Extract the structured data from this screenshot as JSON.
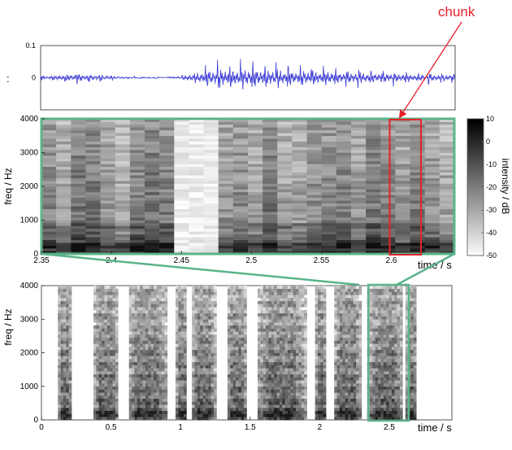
{
  "annotation": {
    "chunk_label": "chunk",
    "colon_label": ":",
    "accent_color": "#e8202a",
    "zoom_box_color": "#5bb38a"
  },
  "chart_data": [
    {
      "type": "line",
      "subject": "waveform",
      "x_range": [
        2.35,
        2.65
      ],
      "ylim": [
        -0.1,
        0.1
      ],
      "y_ticks": [
        "0.1",
        "0"
      ],
      "line_color": "#3b3bd6",
      "envelope": {
        "x": [
          2.35,
          2.36,
          2.37,
          2.38,
          2.39,
          2.4,
          2.41,
          2.42,
          2.43,
          2.44,
          2.45,
          2.46,
          2.47,
          2.48,
          2.49,
          2.5,
          2.51,
          2.52,
          2.53,
          2.54,
          2.55,
          2.56,
          2.57,
          2.58,
          2.59,
          2.6,
          2.61,
          2.62,
          2.63,
          2.64,
          2.65
        ],
        "amplitude": [
          0.01,
          0.015,
          0.025,
          0.03,
          0.02,
          0.015,
          0.005,
          0.002,
          0.002,
          0.002,
          0.01,
          0.025,
          0.06,
          0.075,
          0.07,
          0.07,
          0.068,
          0.065,
          0.06,
          0.058,
          0.055,
          0.05,
          0.045,
          0.042,
          0.04,
          0.035,
          0.033,
          0.03,
          0.028,
          0.025,
          0.022
        ]
      }
    },
    {
      "type": "heatmap",
      "subject": "zoomed spectrogram",
      "ylabel": "freq / Hz",
      "xlabel": "time / s",
      "x_range": [
        2.35,
        2.645
      ],
      "ylim": [
        0,
        4000
      ],
      "x_ticks": [
        "2.35",
        "2.4",
        "2.45",
        "2.5",
        "2.55",
        "2.6"
      ],
      "y_ticks": [
        "0",
        "1000",
        "2000",
        "3000",
        "4000"
      ],
      "colorbar": {
        "label": "intensity / dB",
        "range": [
          -50,
          10
        ],
        "ticks": [
          "10",
          "0",
          "-10",
          "-20",
          "-30",
          "-40",
          "-50"
        ]
      },
      "highlight": {
        "label": "chunk",
        "x_range": [
          2.6,
          2.62
        ],
        "y_range": [
          0,
          4000
        ]
      }
    },
    {
      "type": "heatmap",
      "subject": "full spectrogram",
      "ylabel": "freq / Hz",
      "xlabel": "time / s",
      "x_range": [
        0,
        2.95
      ],
      "ylim": [
        0,
        4000
      ],
      "x_ticks": [
        "0",
        "0.5",
        "1",
        "1.5",
        "2",
        "2.5"
      ],
      "y_ticks": [
        "0",
        "1000",
        "2000",
        "3000",
        "4000"
      ],
      "zoom_region": {
        "x_range": [
          2.35,
          2.64
        ]
      }
    }
  ]
}
